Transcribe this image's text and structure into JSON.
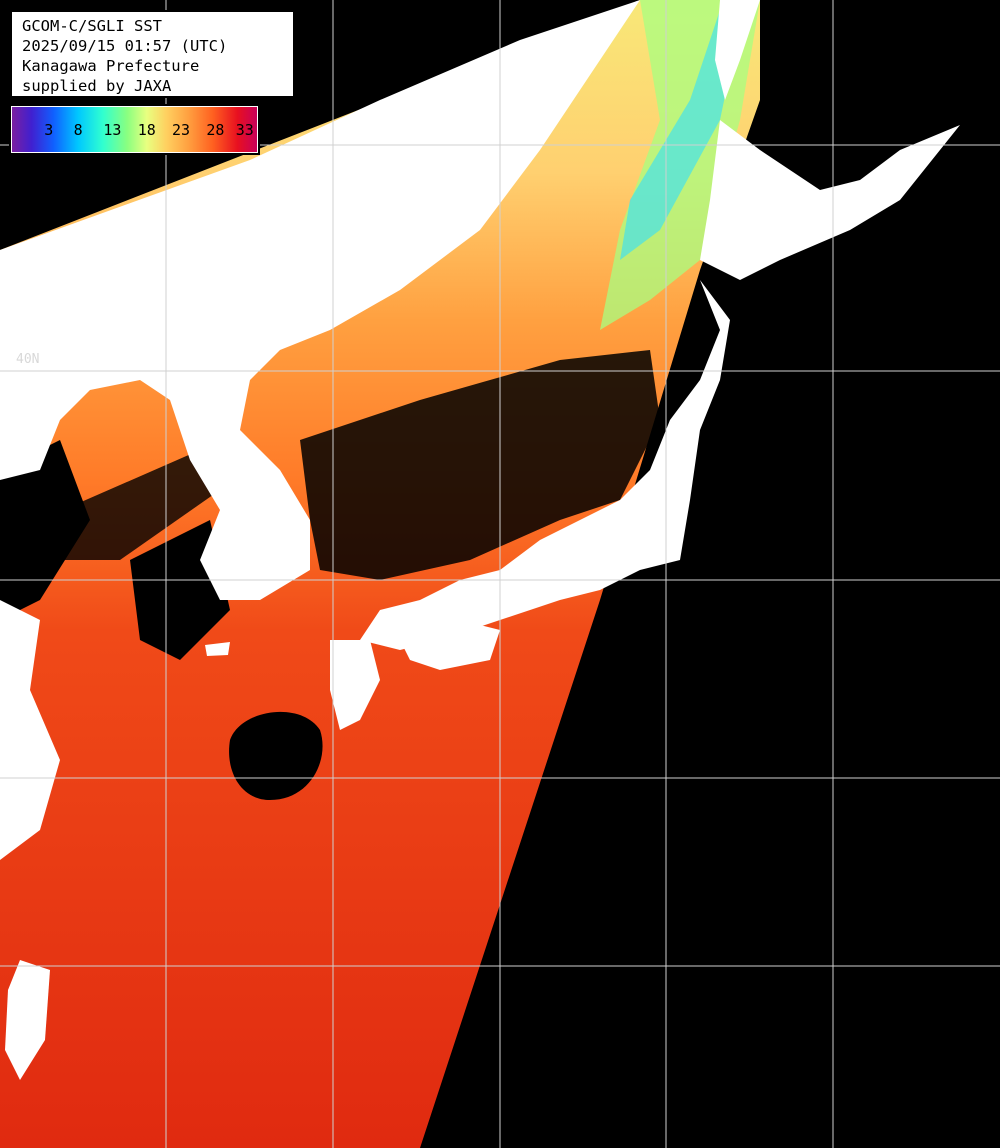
{
  "info": {
    "line1": "GCOM-C/SGLI SST",
    "line2": "2025/09/15 01:57 (UTC)",
    "line3": "Kanagawa Prefecture",
    "line4": "supplied by JAXA"
  },
  "colorbar": {
    "ticks": [
      "3",
      "8",
      "13",
      "18",
      "23",
      "28",
      "33"
    ]
  },
  "grid": {
    "lat_label": "40N"
  },
  "colors": {
    "land": "#ffffff",
    "no_data": "#000000",
    "grid": "#d0d0d0",
    "warm_sea": "#e83010",
    "mid_sea": "#ff8030",
    "cool_sea": "#f8d870",
    "cold_sea": "#30e8ff"
  }
}
